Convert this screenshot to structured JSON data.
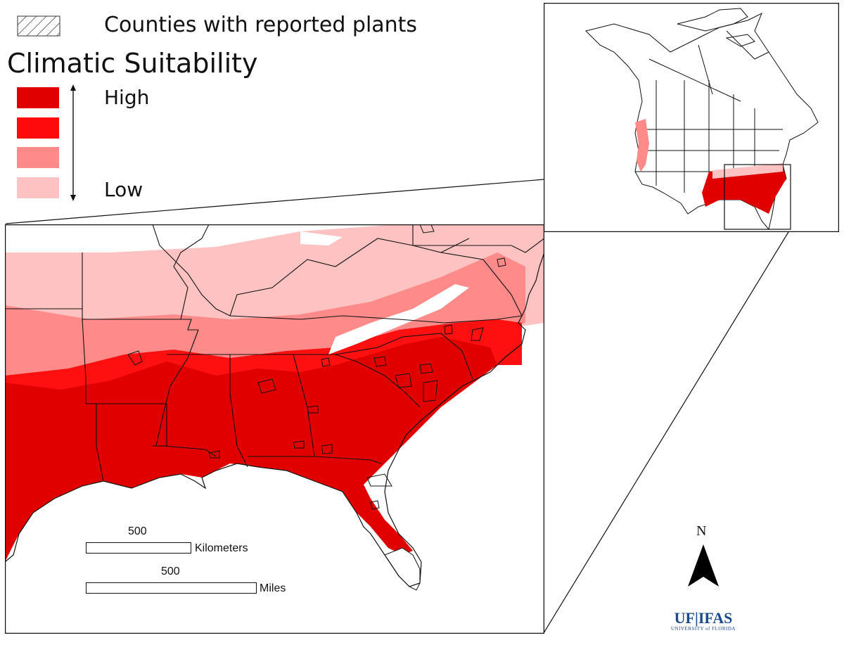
{
  "legend": {
    "hatch_label": "Counties with reported plants",
    "title": "Climatic Suitability",
    "high_label": "High",
    "low_label": "Low",
    "classes": [
      {
        "level": "high",
        "color": "#e00000"
      },
      {
        "level": "medium-high",
        "color": "#ff0a0a"
      },
      {
        "level": "medium-low",
        "color": "#ff8a8a"
      },
      {
        "level": "low",
        "color": "#ffc2c2"
      }
    ]
  },
  "scale_bars": {
    "km": {
      "value": "500",
      "unit": "Kilometers"
    },
    "mi": {
      "value": "500",
      "unit": "Miles"
    }
  },
  "north_arrow": {
    "label": "N"
  },
  "logo": {
    "main": "UF|IFAS",
    "sub": "UNIVERSITY of FLORIDA"
  },
  "colors": {
    "high": "#e00000",
    "med_high": "#ff0a0a",
    "med_low": "#ff8a8a",
    "low": "#ffc2c2",
    "logo_blue": "#1c4b8c",
    "logo_orange": "#f27c1e"
  }
}
